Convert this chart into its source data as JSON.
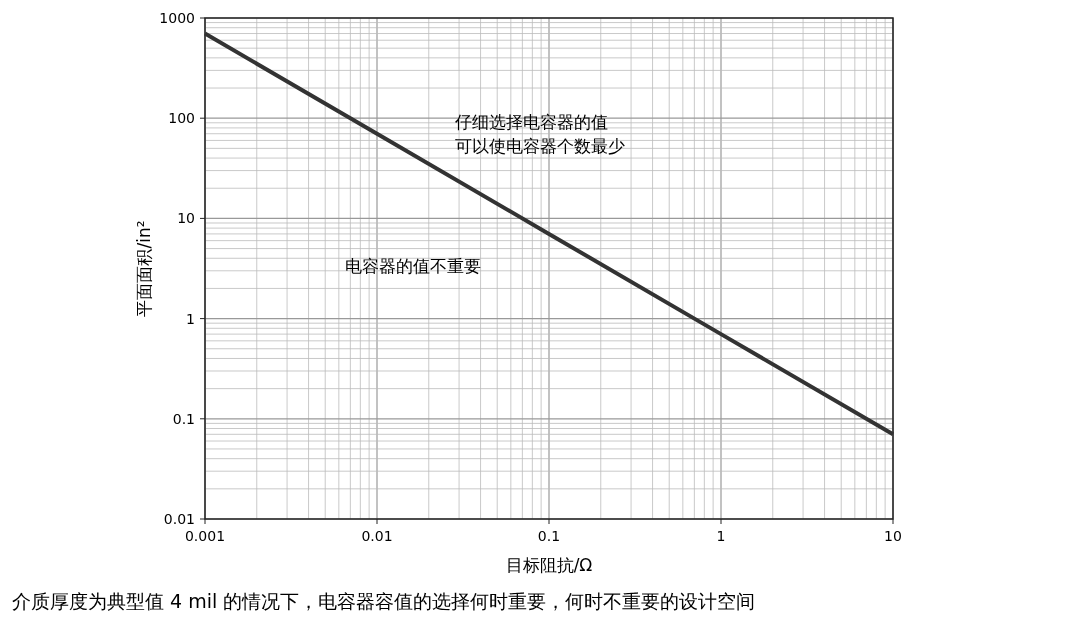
{
  "chart_data": {
    "type": "line",
    "xlabel": "目标阻抗/Ω",
    "ylabel": "平面面积/in²",
    "x": [
      0.001,
      0.01,
      0.1,
      1,
      10
    ],
    "series": [
      {
        "color": "#333333",
        "values": [
          700,
          70,
          7,
          0.7,
          0.07
        ]
      }
    ],
    "log": "xy",
    "xlim": [
      0.001,
      10
    ],
    "ylim": [
      0.01,
      1000
    ],
    "xticks": [
      0.001,
      0.01,
      0.1,
      1,
      10
    ],
    "yticks": [
      0.01,
      0.1,
      1,
      10,
      100,
      1000
    ],
    "grid": true,
    "marker": "none",
    "line_style": "solid",
    "annotations": [
      "仔细选择电容器的值",
      "可以使电容器个数最少",
      "电容器的值不重要",
      "介质厚度为典型值 4 mil 的情况下，电容器容值的选择何时重要，何时不重要的设计空间"
    ]
  }
}
